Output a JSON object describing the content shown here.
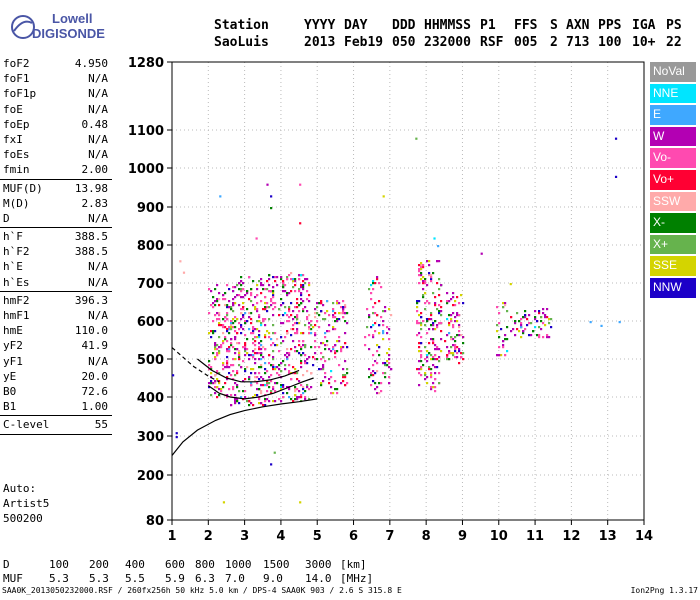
{
  "logo": {
    "line1": "Lowell",
    "line2": "DIGISONDE"
  },
  "header": {
    "labels": [
      "Station",
      "YYYY",
      "DAY",
      "DDD",
      "HHMMSS",
      "P1",
      "FFS",
      "S",
      "AXN",
      "PPS",
      "IGA",
      "PS"
    ],
    "values": [
      "SaoLuis",
      "2013",
      "Feb19",
      "050",
      "232000",
      "RSF",
      "005",
      "2",
      "713",
      "100",
      "10+",
      "22"
    ]
  },
  "params": [
    [
      {
        "name": "foF2",
        "value": "4.950"
      },
      {
        "name": "foF1",
        "value": "N/A"
      },
      {
        "name": "foF1p",
        "value": "N/A"
      },
      {
        "name": "foE",
        "value": "N/A"
      },
      {
        "name": "foEp",
        "value": "0.48"
      },
      {
        "name": "fxI",
        "value": "N/A"
      },
      {
        "name": "foEs",
        "value": "N/A"
      },
      {
        "name": "fmin",
        "value": "2.00"
      }
    ],
    [
      {
        "name": "MUF(D)",
        "value": "13.98"
      },
      {
        "name": "M(D)",
        "value": "2.83"
      },
      {
        "name": "D",
        "value": "N/A"
      }
    ],
    [
      {
        "name": "h`F",
        "value": "388.5"
      },
      {
        "name": "h`F2",
        "value": "388.5"
      },
      {
        "name": "h`E",
        "value": "N/A"
      },
      {
        "name": "h`Es",
        "value": "N/A"
      }
    ],
    [
      {
        "name": "hmF2",
        "value": "396.3"
      },
      {
        "name": "hmF1",
        "value": "N/A"
      },
      {
        "name": "hmE",
        "value": "110.0"
      },
      {
        "name": "yF2",
        "value": "41.9"
      },
      {
        "name": "yF1",
        "value": "N/A"
      },
      {
        "name": "yE",
        "value": "20.0"
      },
      {
        "name": "B0",
        "value": "72.6"
      },
      {
        "name": "B1",
        "value": "1.00"
      }
    ],
    [
      {
        "name": "C-level",
        "value": "55"
      }
    ]
  ],
  "auto": {
    "line1": "Auto:",
    "line2": "Artist5",
    "line3": "500200"
  },
  "legend": [
    {
      "label": "NoVal",
      "color": "#999999"
    },
    {
      "label": "NNE",
      "color": "#00e5ff"
    },
    {
      "label": "E",
      "color": "#3fa8ff"
    },
    {
      "label": "W",
      "color": "#b300b3"
    },
    {
      "label": "Vo-",
      "color": "#ff4ab0"
    },
    {
      "label": "Vo+",
      "color": "#ff0033"
    },
    {
      "label": "SSW",
      "color": "#ffaaaa"
    },
    {
      "label": "X-",
      "color": "#008000"
    },
    {
      "label": "X+",
      "color": "#66b34d"
    },
    {
      "label": "SSE",
      "color": "#d4d400"
    },
    {
      "label": "NNW",
      "color": "#1c00c8"
    }
  ],
  "mufd": {
    "d_label": "D",
    "d_values": [
      "100",
      "200",
      "400",
      "600",
      "800",
      "1000",
      "1500",
      "3000"
    ],
    "d_unit": "[km]",
    "muf_label": "MUF",
    "muf_values": [
      "5.3",
      "5.3",
      "5.5",
      "5.9",
      "6.3",
      "7.0",
      "9.0",
      "14.0"
    ],
    "muf_unit": "[MHz]"
  },
  "footer": {
    "left": "SAA0K_2013050232000.RSF / 260fx256h 50 kHz 5.0 km / DPS-4 SAA0K 903 / 2.6 S 315.8 E",
    "right": "Ion2Png 1.3.17"
  },
  "chart_data": {
    "type": "scatter",
    "x_ticks": [
      "1",
      "2",
      "3",
      "4",
      "5",
      "6",
      "7",
      "8",
      "9",
      "10",
      "11",
      "12",
      "13",
      "14"
    ],
    "y_ticks": [
      "80",
      "200",
      "300",
      "400",
      "500",
      "600",
      "700",
      "800",
      "900",
      "1000",
      "1100",
      "1280"
    ],
    "xlim": [
      1,
      14
    ],
    "ylim": [
      80,
      1280
    ],
    "grid": true,
    "legend_position": "right",
    "clusters": [
      {
        "x": [
          2.0,
          2.6
        ],
        "y": [
          400,
          700
        ],
        "n": 160
      },
      {
        "x": [
          2.6,
          3.6
        ],
        "y": [
          380,
          720
        ],
        "n": 300
      },
      {
        "x": [
          3.6,
          4.8
        ],
        "y": [
          390,
          730
        ],
        "n": 320
      },
      {
        "x": [
          4.8,
          5.8
        ],
        "y": [
          410,
          660
        ],
        "n": 150
      },
      {
        "x": [
          6.3,
          6.8
        ],
        "y": [
          410,
          720
        ],
        "n": 70
      },
      {
        "x": [
          6.8,
          7.0
        ],
        "y": [
          430,
          650
        ],
        "n": 30
      },
      {
        "x": [
          7.7,
          8.4
        ],
        "y": [
          420,
          760
        ],
        "n": 180
      },
      {
        "x": [
          8.5,
          9.0
        ],
        "y": [
          490,
          680
        ],
        "n": 80
      },
      {
        "x": [
          9.9,
          10.2
        ],
        "y": [
          510,
          650
        ],
        "n": 30
      },
      {
        "x": [
          10.3,
          11.4
        ],
        "y": [
          560,
          640
        ],
        "n": 70
      }
    ],
    "outliers": [
      {
        "x": 3.6,
        "y": 960,
        "c": "#b300b3"
      },
      {
        "x": 3.7,
        "y": 930,
        "c": "#1c00c8"
      },
      {
        "x": 3.7,
        "y": 900,
        "c": "#008000"
      },
      {
        "x": 4.5,
        "y": 960,
        "c": "#ff4ab0"
      },
      {
        "x": 4.5,
        "y": 860,
        "c": "#ff0033"
      },
      {
        "x": 3.3,
        "y": 820,
        "c": "#ff4ab0"
      },
      {
        "x": 2.3,
        "y": 930,
        "c": "#3fa8ff"
      },
      {
        "x": 7.7,
        "y": 1080,
        "c": "#66b34d"
      },
      {
        "x": 6.8,
        "y": 930,
        "c": "#d4d400"
      },
      {
        "x": 13.2,
        "y": 1080,
        "c": "#1c00c8"
      },
      {
        "x": 13.2,
        "y": 980,
        "c": "#1c00c8"
      },
      {
        "x": 13.3,
        "y": 600,
        "c": "#3fa8ff"
      },
      {
        "x": 12.5,
        "y": 600,
        "c": "#3fa8ff"
      },
      {
        "x": 12.8,
        "y": 590,
        "c": "#3fa8ff"
      },
      {
        "x": 2.4,
        "y": 130,
        "c": "#d4d400"
      },
      {
        "x": 4.5,
        "y": 130,
        "c": "#d4d400"
      },
      {
        "x": 3.7,
        "y": 230,
        "c": "#1c00c8"
      },
      {
        "x": 3.8,
        "y": 260,
        "c": "#66b34d"
      },
      {
        "x": 1.1,
        "y": 310,
        "c": "#1c00c8"
      },
      {
        "x": 1.1,
        "y": 300,
        "c": "#1c00c8"
      },
      {
        "x": 1.2,
        "y": 760,
        "c": "#ffaaaa"
      },
      {
        "x": 1.3,
        "y": 730,
        "c": "#ffaaaa"
      },
      {
        "x": 1.0,
        "y": 460,
        "c": "#1c00c8"
      },
      {
        "x": 10.3,
        "y": 700,
        "c": "#d4d400"
      },
      {
        "x": 9.5,
        "y": 780,
        "c": "#b300b3"
      },
      {
        "x": 8.3,
        "y": 800,
        "c": "#3fa8ff"
      },
      {
        "x": 8.2,
        "y": 820,
        "c": "#00e5ff"
      }
    ],
    "curves": [
      {
        "style": "solid",
        "x": [
          1.0,
          1.3,
          1.7,
          2.2,
          2.6,
          3.0,
          3.5,
          4.0,
          4.5,
          5.0
        ],
        "y": [
          250,
          285,
          315,
          340,
          355,
          365,
          375,
          382,
          388,
          395
        ]
      },
      {
        "style": "dashed",
        "x": [
          1.0,
          1.3,
          1.6,
          2.0,
          2.3
        ],
        "y": [
          530,
          505,
          480,
          455,
          440
        ]
      },
      {
        "style": "solid",
        "x": [
          2.0,
          2.3,
          2.6,
          3.0,
          3.4,
          3.8,
          4.2,
          4.6,
          4.9
        ],
        "y": [
          430,
          410,
          400,
          395,
          400,
          410,
          425,
          440,
          450
        ]
      },
      {
        "style": "solid",
        "x": [
          1.7,
          2.1,
          2.5,
          2.9,
          3.3,
          3.7,
          4.1,
          4.5
        ],
        "y": [
          500,
          470,
          450,
          440,
          440,
          445,
          455,
          470
        ]
      }
    ]
  }
}
